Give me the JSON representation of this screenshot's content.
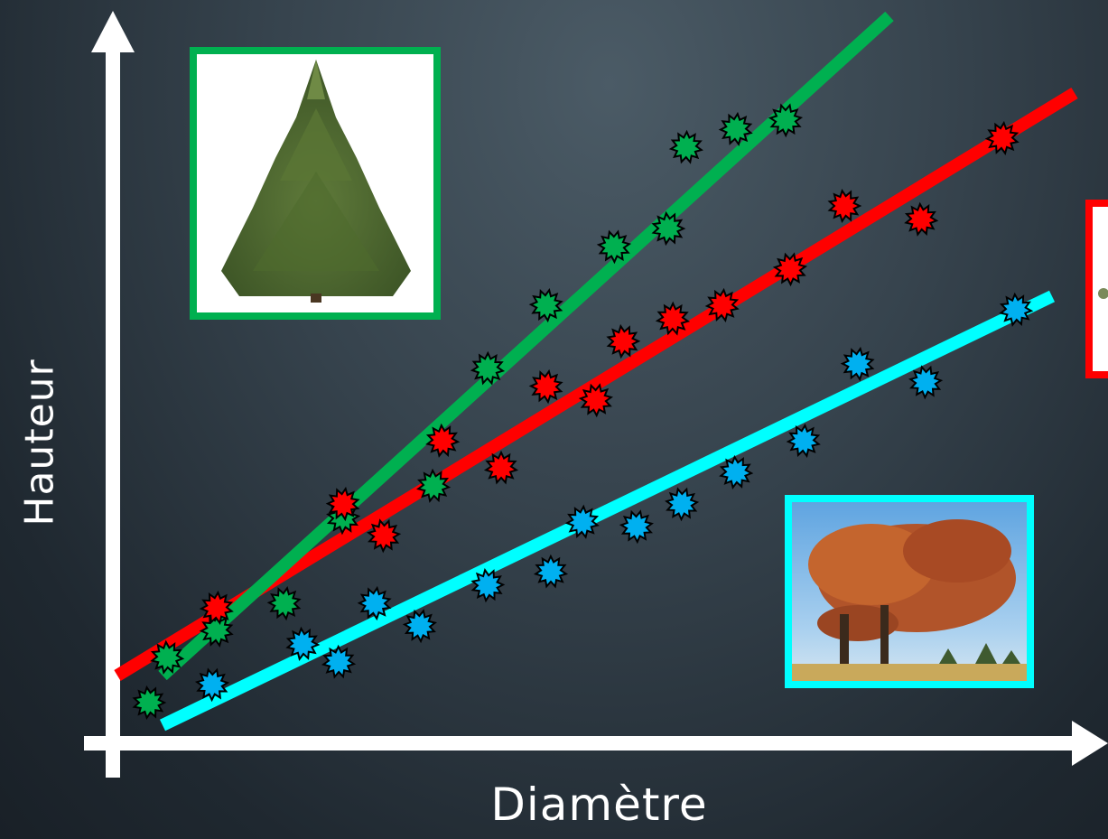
{
  "chart_data": {
    "type": "scatter",
    "title": "",
    "xlabel": "Diamètre",
    "ylabel": "Hauteur",
    "xlim": [
      0,
      1000
    ],
    "ylim": [
      0,
      750
    ],
    "grid": false,
    "series": [
      {
        "color": "#00b050",
        "trendline": [
          [
            55,
            75
          ],
          [
            860,
            805
          ]
        ],
        "points": [
          [
            40,
            45
          ],
          [
            60,
            95
          ],
          [
            115,
            125
          ],
          [
            190,
            155
          ],
          [
            255,
            250
          ],
          [
            355,
            285
          ],
          [
            415,
            415
          ],
          [
            480,
            485
          ],
          [
            555,
            550
          ],
          [
            615,
            570
          ],
          [
            635,
            660
          ],
          [
            690,
            680
          ],
          [
            745,
            690
          ]
        ]
      },
      {
        "color": "#ff0000",
        "trendline": [
          [
            5,
            75
          ],
          [
            1065,
            720
          ]
        ],
        "points": [
          [
            115,
            150
          ],
          [
            255,
            265
          ],
          [
            300,
            230
          ],
          [
            365,
            335
          ],
          [
            430,
            305
          ],
          [
            480,
            395
          ],
          [
            535,
            380
          ],
          [
            565,
            445
          ],
          [
            620,
            470
          ],
          [
            675,
            485
          ],
          [
            750,
            525
          ],
          [
            810,
            595
          ],
          [
            895,
            580
          ],
          [
            985,
            670
          ]
        ]
      },
      {
        "color": "#00b0f0",
        "trendline": [
          [
            55,
            20
          ],
          [
            1040,
            495
          ]
        ],
        "points": [
          [
            110,
            65
          ],
          [
            210,
            110
          ],
          [
            250,
            90
          ],
          [
            290,
            155
          ],
          [
            340,
            130
          ],
          [
            415,
            175
          ],
          [
            485,
            190
          ],
          [
            520,
            245
          ],
          [
            580,
            240
          ],
          [
            630,
            265
          ],
          [
            690,
            300
          ],
          [
            765,
            335
          ],
          [
            825,
            420
          ],
          [
            900,
            400
          ],
          [
            1000,
            480
          ]
        ]
      }
    ],
    "annotations": [
      {
        "name": "conifer-image",
        "border_color": "#00b050"
      },
      {
        "name": "red-framed-image",
        "border_color": "#ff0000"
      },
      {
        "name": "deciduous-tree-image",
        "border_color": "#00ffff"
      }
    ],
    "colors": {
      "axis": "#ffffff",
      "trend_cyan": "#00ffff"
    }
  }
}
